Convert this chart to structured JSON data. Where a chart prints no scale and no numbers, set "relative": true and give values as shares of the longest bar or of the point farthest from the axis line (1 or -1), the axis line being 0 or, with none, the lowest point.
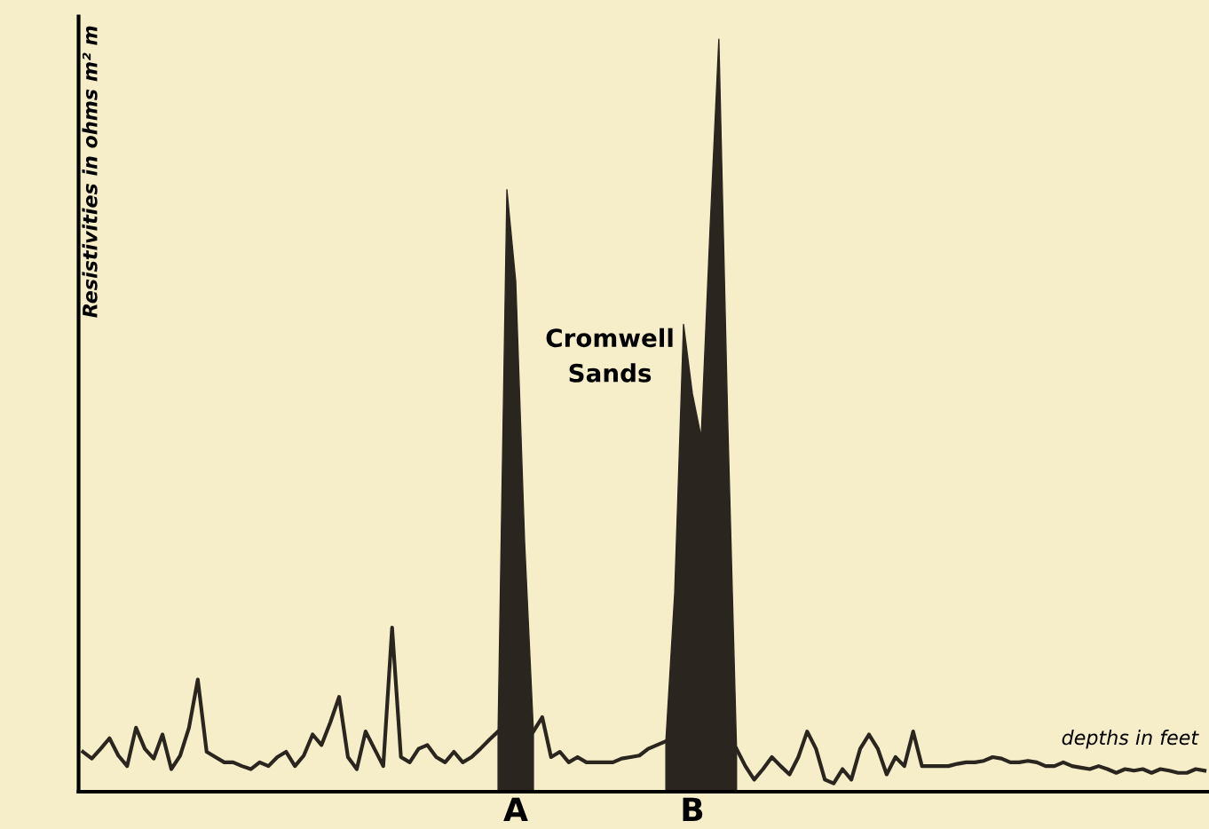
{
  "chart_data": {
    "type": "line",
    "relative": true,
    "xlabel": "depths in feet",
    "ylabel": "Resistivities in ohms m² m",
    "annotations": [
      "Cromwell Sands"
    ],
    "categories": [
      null,
      null,
      null,
      null,
      null,
      null,
      null,
      null,
      null,
      null,
      null,
      null,
      null,
      null,
      null,
      null,
      null,
      null,
      null,
      null,
      null,
      null,
      null,
      null,
      null,
      null,
      null,
      null,
      null,
      null,
      null,
      null,
      null,
      null,
      null,
      null,
      null,
      null,
      null,
      null,
      null,
      null,
      null,
      null,
      null,
      null,
      null,
      null,
      null,
      "A",
      null,
      null,
      null,
      null,
      null,
      null,
      null,
      null,
      null,
      null,
      null,
      null,
      null,
      null,
      null,
      null,
      null,
      null,
      null,
      "B",
      null,
      null,
      null,
      null,
      null,
      null,
      null,
      null,
      null,
      null,
      null,
      null,
      null,
      null,
      null,
      null,
      null,
      null,
      null,
      null,
      null,
      null,
      null,
      null,
      null,
      null,
      null,
      null,
      null,
      null,
      null,
      null,
      null,
      null,
      null,
      null,
      null,
      null,
      null,
      null,
      null,
      null,
      null,
      null,
      null,
      null,
      null,
      null,
      null,
      null,
      null,
      null,
      null,
      null,
      null,
      null,
      null,
      null
    ],
    "series": [
      {
        "color": "#2b2520",
        "values": [
          0.053,
          0.044,
          0.057,
          0.071,
          0.048,
          0.034,
          0.085,
          0.057,
          0.044,
          0.076,
          0.03,
          0.048,
          0.085,
          0.149,
          0.053,
          0.046,
          0.039,
          0.039,
          0.034,
          0.03,
          0.039,
          0.034,
          0.046,
          0.053,
          0.034,
          0.048,
          0.076,
          0.062,
          0.092,
          0.126,
          0.046,
          0.03,
          0.08,
          0.057,
          0.034,
          0.218,
          0.046,
          0.039,
          0.057,
          0.062,
          0.046,
          0.039,
          0.053,
          0.039,
          0.046,
          0.057,
          0.069,
          0.08,
          null,
          null,
          null,
          0.08,
          0.099,
          0.046,
          0.053,
          0.039,
          0.046,
          0.039,
          0.039,
          0.039,
          0.039,
          0.044,
          0.046,
          0.048,
          0.057,
          0.062,
          0.067,
          null,
          null,
          null,
          null,
          null,
          null,
          null,
          0.057,
          0.034,
          0.016,
          0.03,
          0.046,
          0.034,
          0.023,
          0.046,
          0.08,
          0.057,
          0.016,
          0.011,
          0.03,
          0.016,
          0.057,
          0.076,
          0.057,
          0.023,
          0.046,
          0.034,
          0.08,
          0.034,
          0.034,
          0.034,
          0.034,
          0.037,
          0.039,
          0.039,
          0.041,
          0.046,
          0.044,
          0.039,
          0.039,
          0.041,
          0.039,
          0.034,
          0.034,
          0.039,
          0.034,
          0.032,
          0.03,
          0.034,
          0.03,
          0.025,
          0.03,
          0.028,
          0.03,
          0.025,
          0.03,
          0.028,
          0.025,
          0.025,
          0.03,
          0.028
        ]
      },
      {
        "type": "area",
        "color": "#2b2520",
        "values": [
          null,
          null,
          null,
          null,
          null,
          null,
          null,
          null,
          null,
          null,
          null,
          null,
          null,
          null,
          null,
          null,
          null,
          null,
          null,
          null,
          null,
          null,
          null,
          null,
          null,
          null,
          null,
          null,
          null,
          null,
          null,
          null,
          null,
          null,
          null,
          null,
          null,
          null,
          null,
          null,
          null,
          null,
          null,
          null,
          null,
          null,
          null,
          0.08,
          0.8,
          0.678,
          0.333,
          0.08,
          null,
          null,
          null,
          null,
          null,
          null,
          null,
          null,
          null,
          null,
          null,
          null,
          null,
          null,
          0.067,
          0.264,
          0.621,
          0.529,
          0.471,
          0.747,
          1.0,
          0.494,
          0.057,
          null,
          null,
          null,
          null,
          null,
          null,
          null,
          null,
          null,
          null,
          null,
          null,
          null,
          null,
          null,
          null,
          null,
          null,
          null,
          null,
          null,
          null,
          null,
          null,
          null,
          null,
          null,
          null,
          null,
          null,
          null,
          null,
          null,
          null,
          null,
          null,
          null,
          null,
          null,
          null,
          null,
          null,
          null,
          null,
          null,
          null,
          null,
          null,
          null,
          null,
          null,
          null,
          null
        ]
      }
    ]
  }
}
